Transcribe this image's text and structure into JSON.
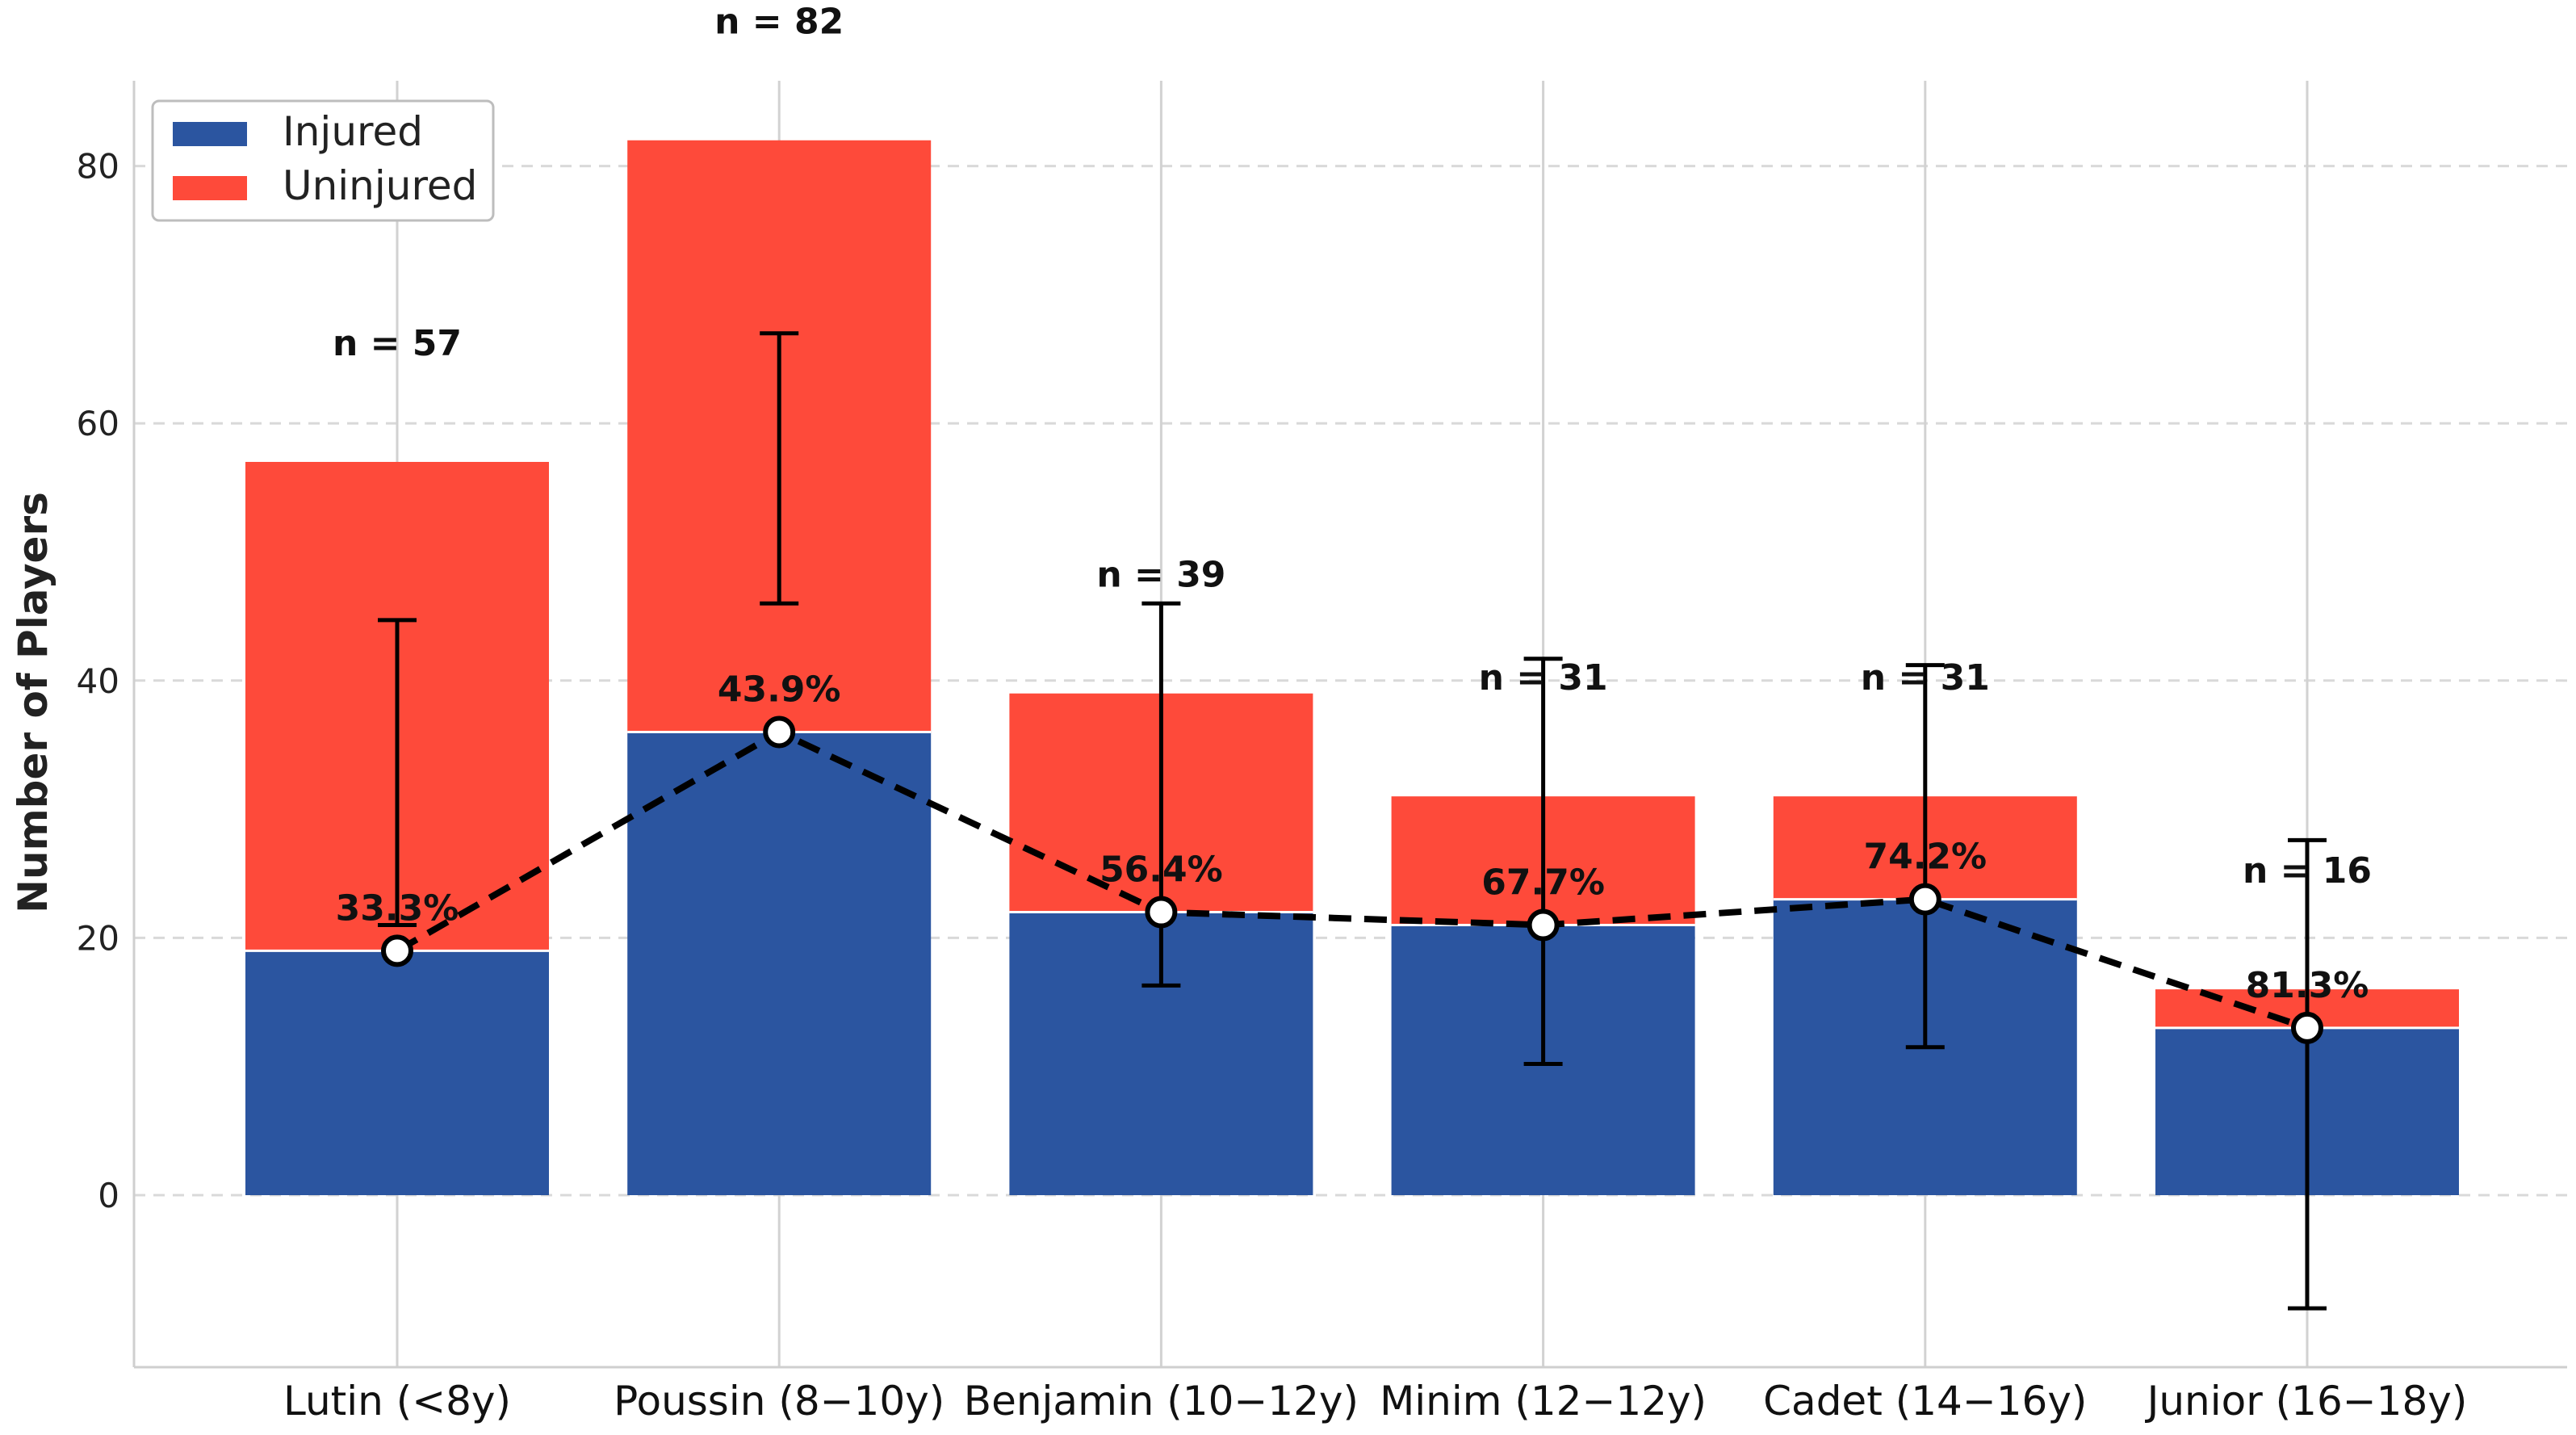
{
  "chart_data": {
    "type": "bar",
    "stacked": true,
    "title": "",
    "xlabel": "",
    "ylabel": "Number of Players",
    "ylim": [
      -13,
      87
    ],
    "yticks": [
      0,
      20,
      40,
      60,
      80
    ],
    "grid": true,
    "legend": {
      "placement": "top-left",
      "entries": [
        "Injured",
        "Uninjured"
      ]
    },
    "categories": [
      "Lutin (<8y)",
      "Poussin (8−10y)",
      "Benjamin (10−12y)",
      "Minim (12−12y)",
      "Cadet (14−16y)",
      "Junior (16−18y)"
    ],
    "series": [
      {
        "name": "Injured",
        "color": "#2b55a0",
        "values": [
          19,
          36,
          22,
          21,
          23,
          13
        ]
      },
      {
        "name": "Uninjured",
        "color": "#fe4a3a",
        "values": [
          38,
          46,
          17,
          10,
          8,
          3
        ]
      }
    ],
    "totals": [
      57,
      82,
      39,
      31,
      31,
      16
    ],
    "n_labels": [
      "n = 57",
      "n = 82",
      "n = 39",
      "n = 31",
      "n = 31",
      "n = 16"
    ],
    "percent_labels": [
      "33.3%",
      "43.9%",
      "56.4%",
      "67.7%",
      "74.2%",
      "81.3%"
    ],
    "line": {
      "style": "dashed",
      "color": "#000000",
      "values": [
        19,
        36,
        22,
        21,
        23,
        13
      ]
    },
    "error_bars": [
      {
        "center": 19,
        "low": 21,
        "high": 44.7,
        "cap_low": true,
        "cap_high": true
      },
      {
        "center": 36,
        "low": 46,
        "high": 67,
        "cap_low": true,
        "cap_high": true
      },
      {
        "center": 22,
        "low": 16.3,
        "high": 46,
        "cap_low": true,
        "cap_high": true
      },
      {
        "center": 21,
        "low": 10.2,
        "high": 41.7,
        "cap_low": true,
        "cap_high": true
      },
      {
        "center": 23,
        "low": 11.5,
        "high": 41.2,
        "cap_low": true,
        "cap_high": true
      },
      {
        "center": 13,
        "low": -8.8,
        "high": 27.6,
        "cap_low": true,
        "cap_high": true
      }
    ]
  }
}
